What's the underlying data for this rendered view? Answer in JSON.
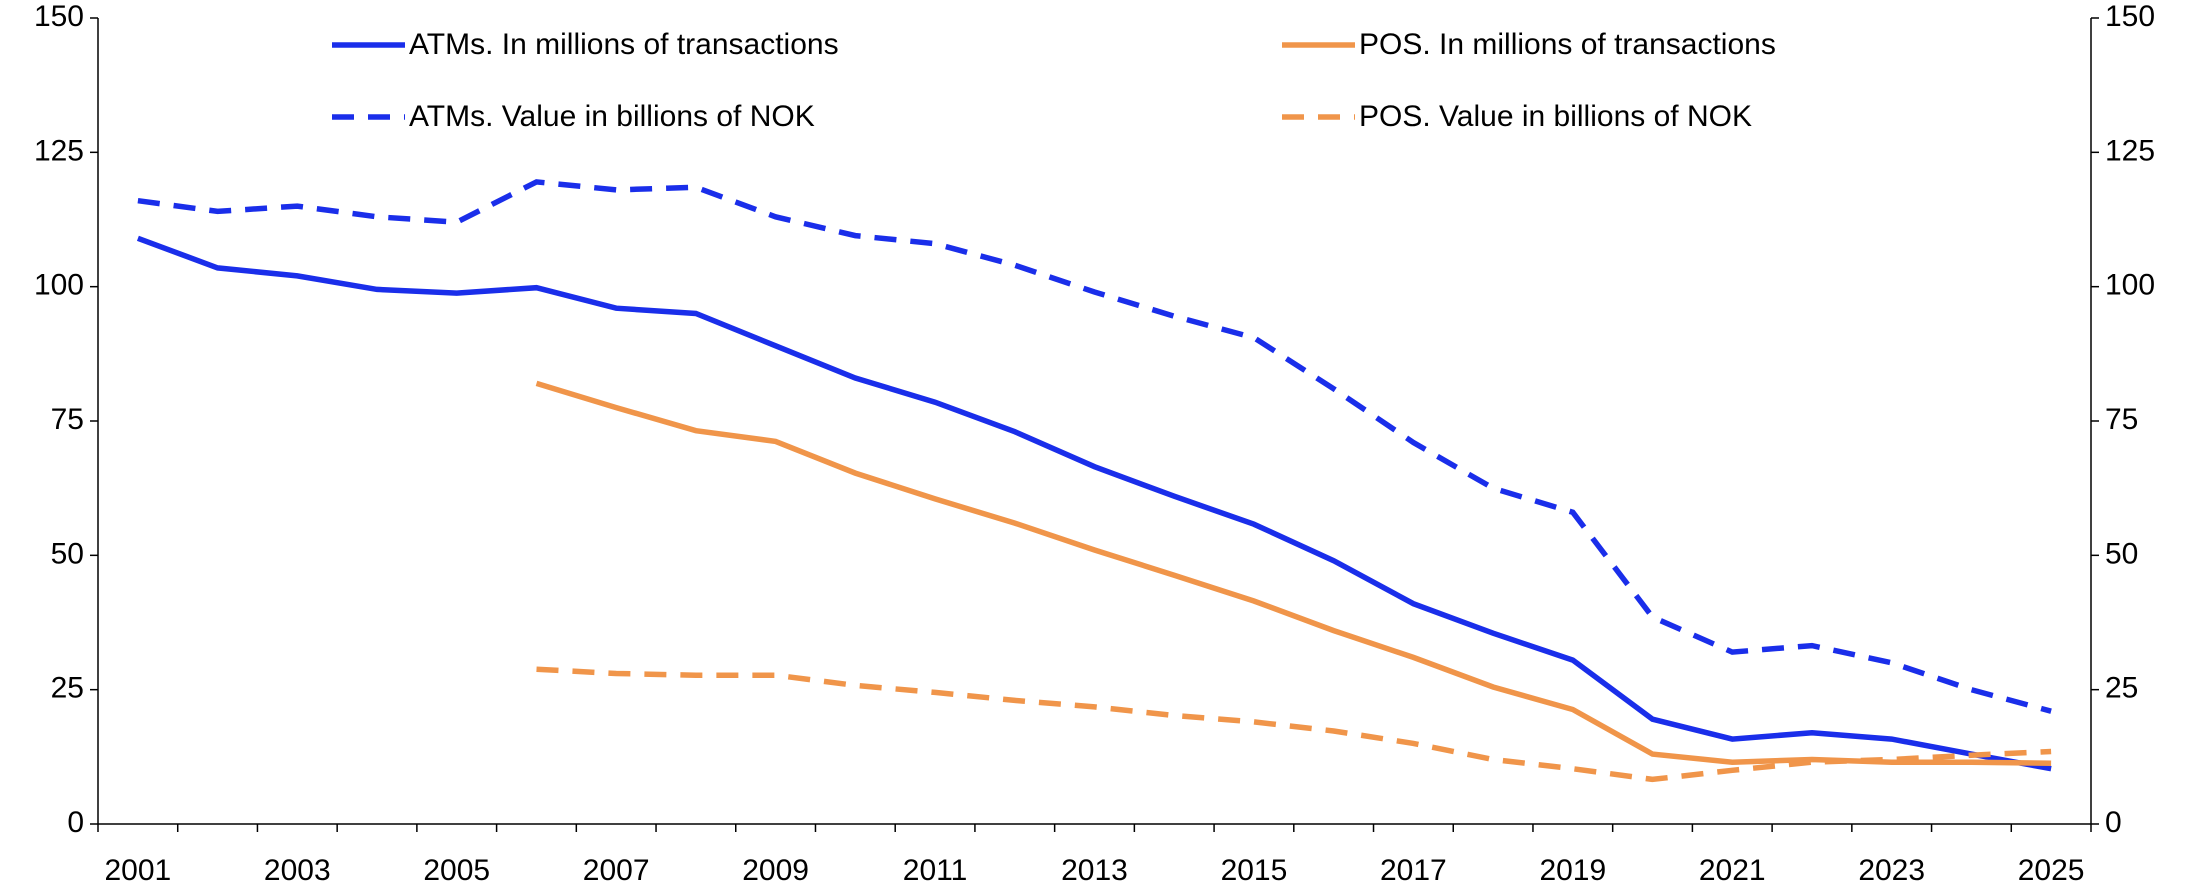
{
  "chart_data": {
    "type": "line",
    "categories": [
      "2001",
      null,
      "2003",
      null,
      "2005",
      null,
      "2007",
      null,
      "2009",
      null,
      "2011",
      null,
      "2013",
      null,
      "2015",
      null,
      "2017",
      null,
      "2019",
      null,
      "2021",
      null,
      "2023",
      null,
      "2025"
    ],
    "series": [
      {
        "name": "ATMs. In millions of transactions",
        "color": "#1a2eea",
        "dashed": false,
        "values": [
          109,
          103.5,
          102,
          99.5,
          98.8,
          99.8,
          96,
          95,
          89,
          83,
          78.5,
          73,
          66.5,
          61,
          55.8,
          49,
          41,
          35.5,
          30.5,
          19.5,
          15.8,
          17,
          15.8,
          13,
          10.3
        ]
      },
      {
        "name": "POS. In millions of transactions",
        "color": "#f0954a",
        "dashed": false,
        "values": [
          null,
          null,
          null,
          null,
          null,
          82,
          77.5,
          73.2,
          71.2,
          65.3,
          60.5,
          56,
          51,
          46.3,
          41.5,
          36,
          31,
          25.5,
          21.3,
          13,
          11.5,
          12,
          11.5,
          11.5,
          11.3
        ]
      },
      {
        "name": "ATMs. Value in billions of NOK",
        "color": "#1a2eea",
        "dashed": true,
        "values": [
          116,
          114,
          115,
          113,
          112,
          119.5,
          118,
          118.5,
          113,
          109.5,
          108,
          104,
          99,
          94.5,
          90.5,
          81,
          71,
          62.5,
          58,
          38.5,
          32,
          33.2,
          30,
          25,
          21
        ]
      },
      {
        "name": "POS. Value in billions of NOK",
        "color": "#f0954a",
        "dashed": true,
        "values": [
          null,
          null,
          null,
          null,
          null,
          28.8,
          28,
          27.7,
          27.7,
          25.8,
          24.5,
          23,
          21.8,
          20.2,
          19,
          17.3,
          15,
          12,
          10.3,
          8.3,
          10,
          11.5,
          12,
          12.8,
          13.5
        ]
      }
    ],
    "ylim": [
      0,
      150
    ],
    "yticks": [
      0,
      25,
      50,
      75,
      100,
      125,
      150
    ],
    "y2lim": [
      0,
      150
    ],
    "y2ticks": [
      0,
      25,
      50,
      75,
      100,
      125,
      150
    ],
    "grid": false,
    "legend": "top"
  }
}
